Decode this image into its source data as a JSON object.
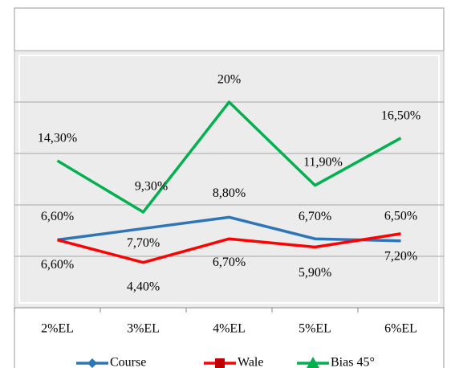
{
  "chart_data": {
    "type": "line",
    "categories": [
      "2%EL",
      "3%EL",
      "4%EL",
      "5%EL",
      "6%EL"
    ],
    "series": [
      {
        "name": "Course",
        "color": "#2e75b6",
        "values": [
          6.6,
          7.7,
          8.8,
          6.7,
          6.5
        ],
        "value_labels": [
          "6,60%",
          "7,70%",
          "8,80%",
          "6,70%",
          "6,50%"
        ]
      },
      {
        "name": "Wale",
        "color": "#ff0000",
        "values": [
          6.6,
          4.4,
          6.7,
          5.9,
          7.2
        ],
        "value_labels": [
          "6,60%",
          "4,40%",
          "6,70%",
          "5,90%",
          "7,20%"
        ]
      },
      {
        "name": "Bias 45°",
        "color": "#00b050",
        "values": [
          14.3,
          9.3,
          20,
          11.9,
          16.5
        ],
        "value_labels": [
          "14,30%",
          "9,30%",
          "20%",
          "11,90%",
          "16,50%"
        ]
      }
    ],
    "ylim": [
      0,
      25
    ],
    "yticks": [
      0,
      5,
      10,
      15,
      20,
      25
    ],
    "grid": true
  }
}
